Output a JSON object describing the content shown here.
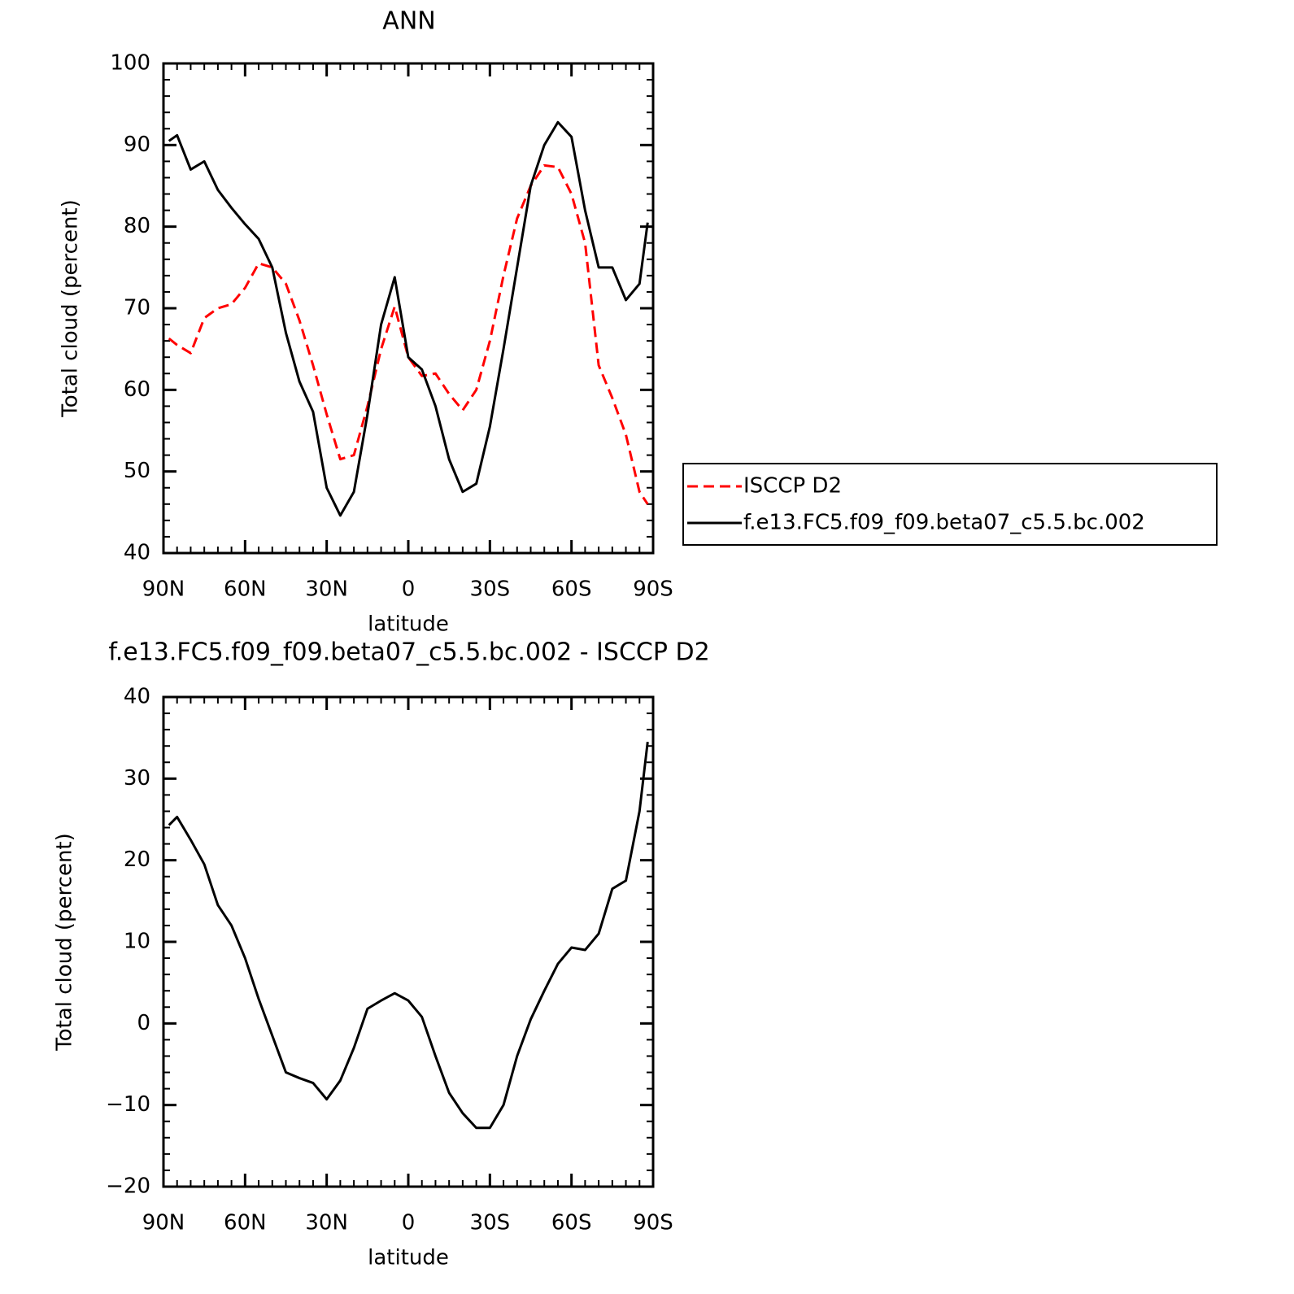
{
  "chart_data": [
    {
      "type": "line",
      "title": "ANN",
      "x_label": "latitude",
      "y_label": "Total cloud (percent)",
      "x": [
        88,
        85,
        80,
        75,
        70,
        65,
        60,
        55,
        50,
        45,
        40,
        35,
        30,
        25,
        20,
        15,
        10,
        5,
        0,
        -5,
        -10,
        -15,
        -20,
        -25,
        -30,
        -35,
        -40,
        -45,
        -50,
        -55,
        -60,
        -65,
        -70,
        -75,
        -80,
        -85,
        -88
      ],
      "series": [
        {
          "name": "ISCCP D2",
          "color": "#ff0000",
          "line_style": "dashed",
          "values": [
            66.3,
            65.5,
            64.5,
            68.8,
            70,
            70.5,
            72.5,
            75.5,
            75,
            73,
            68.5,
            63,
            57,
            51.5,
            52,
            58,
            65,
            70.2,
            64,
            61.7,
            62,
            59.5,
            57.5,
            60,
            66,
            74,
            81,
            85,
            87.5,
            87.3,
            84,
            78,
            63,
            59,
            54.5,
            47.5,
            46
          ]
        },
        {
          "name": "f.e13.FC5.f09_f09.beta07_c5.5.bc.002",
          "color": "#000000",
          "line_style": "solid",
          "values": [
            90.5,
            91.2,
            87,
            88,
            84.5,
            82.3,
            80.3,
            78.5,
            75,
            67,
            61,
            57.3,
            48,
            44.6,
            47.5,
            57,
            68,
            73.8,
            64,
            62.5,
            58,
            51.5,
            47.5,
            48.5,
            55.5,
            65,
            75,
            85,
            90,
            92.8,
            91,
            82,
            75,
            75,
            71,
            73,
            80.5
          ]
        }
      ],
      "xlim": [
        90,
        -90
      ],
      "xticks": [
        {
          "value": 90,
          "label": "90N"
        },
        {
          "value": 60,
          "label": "60N"
        },
        {
          "value": 30,
          "label": "30N"
        },
        0,
        {
          "value": -30,
          "label": "30S"
        },
        {
          "value": -60,
          "label": "60S"
        },
        {
          "value": -90,
          "label": "90S"
        }
      ],
      "ylim": [
        40,
        100
      ],
      "yticks": [
        40,
        50,
        60,
        70,
        80,
        90,
        100
      ],
      "legend": "right"
    },
    {
      "type": "line",
      "title": "f.e13.FC5.f09_f09.beta07_c5.5.bc.002 - ISCCP D2",
      "x_label": "latitude",
      "y_label": "Total cloud (percent)",
      "x": [
        88,
        85,
        80,
        75,
        70,
        65,
        60,
        55,
        50,
        45,
        40,
        35,
        30,
        25,
        20,
        15,
        10,
        5,
        0,
        -5,
        -10,
        -15,
        -20,
        -25,
        -30,
        -35,
        -40,
        -45,
        -50,
        -55,
        -60,
        -65,
        -70,
        -75,
        -80,
        -85,
        -88
      ],
      "values": [
        24.3,
        25.3,
        22.5,
        19.5,
        14.5,
        12,
        8,
        3,
        -1.5,
        -6,
        -6.7,
        -7.3,
        -9.3,
        -7,
        -3,
        1.8,
        2.8,
        3.7,
        2.8,
        0.8,
        -4,
        -8.5,
        -11,
        -12.8,
        -12.8,
        -10,
        -4,
        0.5,
        4,
        7.3,
        9.3,
        9,
        11,
        16.5,
        17.5,
        26,
        34.5
      ],
      "color": "#000000",
      "xlim": [
        90,
        -90
      ],
      "xticks": [
        {
          "value": 90,
          "label": "90N"
        },
        {
          "value": 60,
          "label": "60N"
        },
        {
          "value": 30,
          "label": "30N"
        },
        0,
        {
          "value": -30,
          "label": "30S"
        },
        {
          "value": -60,
          "label": "60S"
        },
        {
          "value": -90,
          "label": "90S"
        }
      ],
      "ylim": [
        -20,
        40
      ],
      "yticks": [
        {
          "value": -20,
          "label": "−20"
        },
        {
          "value": -10,
          "label": "−10"
        },
        0,
        10,
        20,
        30,
        40
      ]
    }
  ]
}
